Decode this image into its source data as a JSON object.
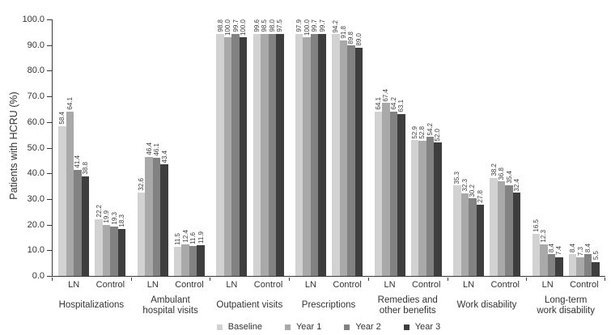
{
  "chart_data": {
    "type": "bar",
    "title": "",
    "ylabel": "Patients with HCRU (%)",
    "xlabel": "",
    "ylim": [
      0,
      100
    ],
    "ytick_step": 10,
    "ytick_labels": [
      "0.0",
      "10.0",
      "20.0",
      "30.0",
      "40.0",
      "50.0",
      "60.0",
      "70.0",
      "80.0",
      "90.0",
      "100.0"
    ],
    "grid": false,
    "legend_position": "bottom",
    "value_label_format": "one-decimal-rotated",
    "series": [
      {
        "name": "Baseline",
        "color": "#d2d2d2"
      },
      {
        "name": "Year 1",
        "color": "#a9a9a9"
      },
      {
        "name": "Year 2",
        "color": "#828282"
      },
      {
        "name": "Year 3",
        "color": "#3e3e3e"
      }
    ],
    "categories": [
      {
        "label_lines": [
          "Hospitalizations"
        ],
        "groups": [
          {
            "label": "LN",
            "values": [
              58.4,
              64.1,
              41.4,
              38.8
            ]
          },
          {
            "label": "Control",
            "values": [
              22.2,
              19.9,
              19.3,
              18.3
            ]
          }
        ]
      },
      {
        "label_lines": [
          "Ambulant",
          "hospital visits"
        ],
        "groups": [
          {
            "label": "LN",
            "values": [
              32.6,
              46.4,
              46.1,
              43.4
            ]
          },
          {
            "label": "Control",
            "values": [
              11.5,
              12.4,
              11.6,
              11.9
            ]
          }
        ]
      },
      {
        "label_lines": [
          "Outpatient visits"
        ],
        "groups": [
          {
            "label": "LN",
            "values": [
              98.8,
              100.0,
              99.7,
              100.0
            ]
          },
          {
            "label": "Control",
            "values": [
              99.6,
              98.5,
              98.0,
              97.5
            ]
          }
        ]
      },
      {
        "label_lines": [
          "Prescriptions"
        ],
        "groups": [
          {
            "label": "LN",
            "values": [
              97.9,
              100.0,
              99.7,
              99.7
            ]
          },
          {
            "label": "Control",
            "values": [
              94.2,
              91.8,
              89.8,
              89.0
            ]
          }
        ]
      },
      {
        "label_lines": [
          "Remedies and",
          "other benefits"
        ],
        "groups": [
          {
            "label": "LN",
            "values": [
              64.1,
              67.4,
              64.2,
              63.1
            ]
          },
          {
            "label": "Control",
            "values": [
              52.9,
              52.8,
              54.2,
              52.0
            ]
          }
        ]
      },
      {
        "label_lines": [
          "Work disability"
        ],
        "groups": [
          {
            "label": "LN",
            "values": [
              35.3,
              32.3,
              30.2,
              27.8
            ]
          },
          {
            "label": "Control",
            "values": [
              38.2,
              36.8,
              35.4,
              32.4
            ]
          }
        ]
      },
      {
        "label_lines": [
          "Long-term",
          "work disability"
        ],
        "groups": [
          {
            "label": "LN",
            "values": [
              16.5,
              12.3,
              8.4,
              7.4
            ]
          },
          {
            "label": "Control",
            "values": [
              8.4,
              7.3,
              8.4,
              5.5
            ]
          }
        ]
      }
    ]
  }
}
